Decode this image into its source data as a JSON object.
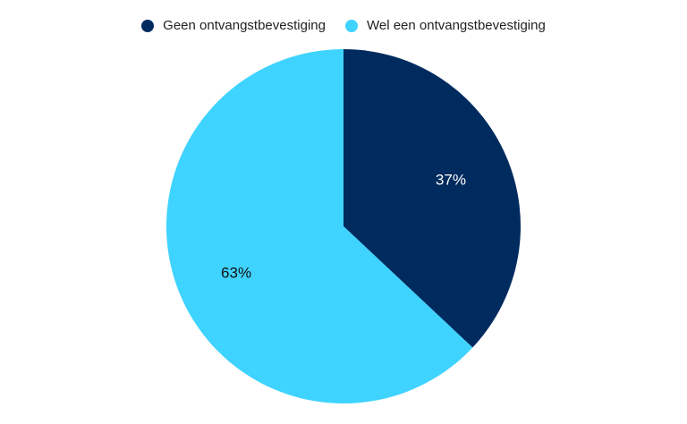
{
  "chart_data": {
    "type": "pie",
    "title": "",
    "legend_position": "top",
    "slices": [
      {
        "name": "Geen ontvangstbevestiging",
        "value": 37,
        "label": "37%",
        "color": "#002B5F",
        "label_color": "#ffffff"
      },
      {
        "name": "Wel een ontvangstbevestiging",
        "value": 63,
        "label": "63%",
        "color": "#3FD3FF",
        "label_color": "#111111"
      }
    ]
  }
}
